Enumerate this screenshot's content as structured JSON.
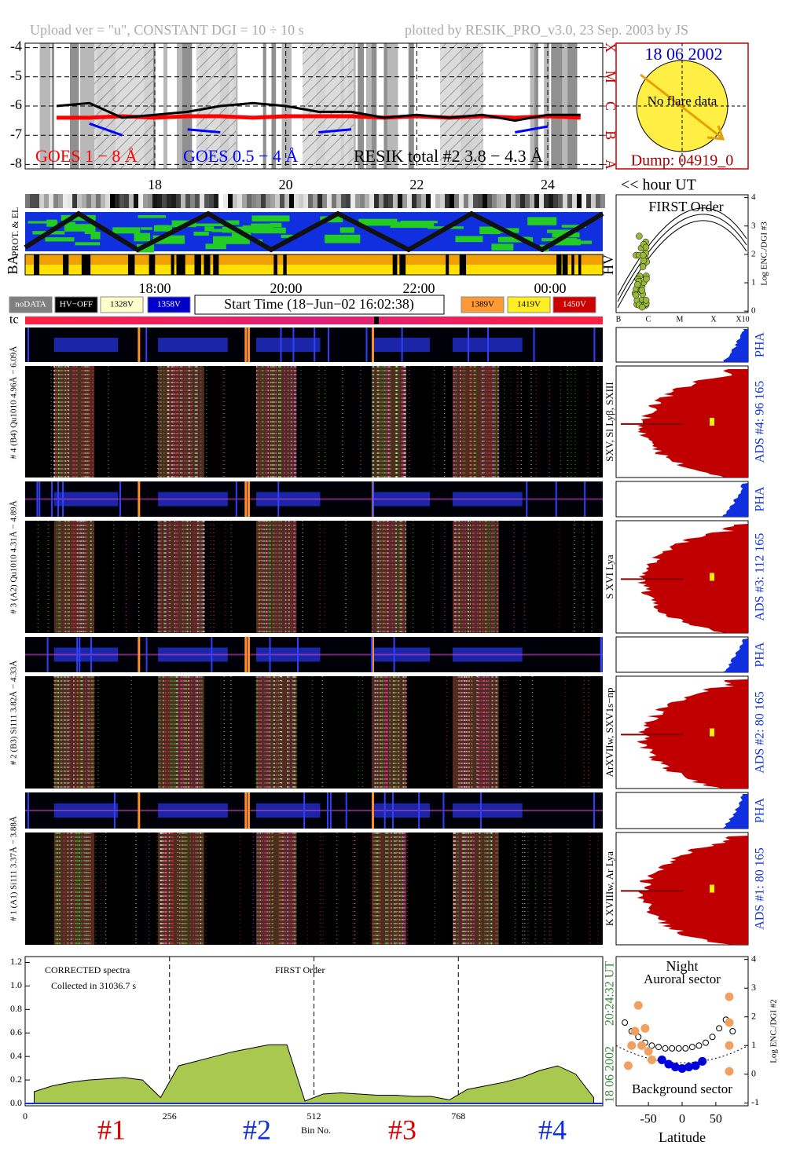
{
  "header": {
    "upload": "Upload ver = \"u\", CONSTANT  DGI =  10 ÷  10 s",
    "plotted": "plotted by RESIK_PRO_v3.0, 23 Sep. 2003 by JS"
  },
  "date_panel": {
    "date": "18 06 2002",
    "note": "No flare data",
    "dump": "Dump: 04919_0"
  },
  "timeline": {
    "time_labels": [
      "18:00",
      "20:00",
      "22:00",
      "00:00"
    ],
    "strip_labels": [
      "PROT. & EL",
      "BA",
      "HV"
    ],
    "legend": [
      {
        "label": "noDATA",
        "color": "#808080"
      },
      {
        "label": "HV−OFF",
        "color": "#000000"
      },
      {
        "label": "1328V",
        "color": "#ffffcc"
      },
      {
        "label": "1358V",
        "color": "#0000cc"
      },
      {
        "label": "1389V",
        "color": "#ff9933"
      },
      {
        "label": "1419V",
        "color": "#ffee22"
      },
      {
        "label": "1450V",
        "color": "#cc0000"
      }
    ],
    "start_time": "Start Time (18−Jun−02 16:02:38)",
    "tc": "tc"
  },
  "detectors": [
    {
      "label": "# 4 (B4) Qu1010  4.96Å − 6.09Å",
      "pha": "PHA",
      "ads": "ADS #4:   96 165",
      "lines": "SXV, Sl Lyβ, SXIII"
    },
    {
      "label": "# 3 (A2) Qu1010  4.31Å − 4.89Å",
      "pha": "PHA",
      "ads": "ADS #3:   112 165",
      "lines": "S XVI Lya"
    },
    {
      "label": "# 2 (B3) Si111  3.82Å − 4.33Å",
      "pha": "PHA",
      "ads": "ADS #2:   80 165",
      "lines": "ArXVIIw, SXV1s−np"
    },
    {
      "label": "# 1 (A1) Si111  3.37Å − 3.88Å",
      "pha": "PHA",
      "ads": "ADS #1:   80 165",
      "lines": "K XVIIIw, Ar Lya"
    }
  ],
  "chart_data": [
    {
      "type": "line",
      "x": [
        16.5,
        17,
        17.5,
        18,
        18.5,
        19,
        19.5,
        20,
        20.5,
        21,
        21.5,
        22,
        22.5,
        23,
        23.5,
        24,
        24.5
      ],
      "series": [
        {
          "name": "GOES 1 − 8 Å",
          "color": "#ff0000",
          "values": [
            -6.4,
            -6.4,
            -6.35,
            -6.4,
            -6.35,
            -6.35,
            -6.4,
            -6.35,
            -6.35,
            -6.35,
            -6.4,
            -6.35,
            -6.4,
            -6.35,
            -6.4,
            -6.35,
            -6.4
          ]
        },
        {
          "name": "GOES 0.5 − 4 Å",
          "color": "#0000ff",
          "values": [
            null,
            -6.6,
            -7.0,
            null,
            -6.8,
            -6.9,
            null,
            null,
            -6.9,
            -6.8,
            null,
            null,
            null,
            null,
            -6.9,
            -6.7,
            null
          ]
        },
        {
          "name": "RESIK total #2  3.8 − 4.3 Å",
          "color": "#000000",
          "values": [
            -6.0,
            -5.9,
            -6.4,
            -6.3,
            -6.2,
            -6.0,
            -5.9,
            -6.0,
            -6.2,
            -6.2,
            -6.4,
            -6.3,
            -6.4,
            -6.3,
            -6.5,
            -6.3,
            -6.3
          ]
        }
      ],
      "xlim": [
        16.02,
        24.84
      ],
      "xticks": [
        18,
        20,
        22,
        24
      ],
      "xlabel": "<< hour UT",
      "ylim": [
        -8.15,
        -3.85
      ],
      "yticks": [
        -4,
        -5,
        -6,
        -7,
        -8
      ],
      "y2lim": [
        -8.15,
        -3.85
      ],
      "y2ticks": [
        {
          "value": -4,
          "label": "X"
        },
        {
          "value": -5,
          "label": "M"
        },
        {
          "value": -6,
          "label": "C"
        },
        {
          "value": -7,
          "label": "B"
        },
        {
          "value": -8,
          "label": "A"
        }
      ],
      "grid": true
    },
    {
      "type": "line",
      "title": "FIRST Order",
      "ylabel": "Log ENC./DGI #3",
      "ylim": [
        -0.05,
        4.1
      ],
      "yticks": [
        0,
        1,
        2,
        3,
        4
      ],
      "x_labels": [
        "B",
        "C",
        "M",
        "X",
        "X10"
      ]
    },
    {
      "type": "area",
      "title": "CORRECTED spectra",
      "subtitle": "Collected in 31036.7 s",
      "annotation": "FIRST Order",
      "color": "#a8c850",
      "x": [
        16,
        48,
        80,
        112,
        144,
        176,
        208,
        240,
        272,
        304,
        336,
        368,
        400,
        432,
        464,
        496,
        528,
        560,
        592,
        624,
        656,
        688,
        720,
        752,
        784,
        816,
        848,
        880,
        912,
        944,
        976,
        1008
      ],
      "values": [
        0.1,
        0.15,
        0.18,
        0.2,
        0.21,
        0.22,
        0.2,
        0.05,
        0.32,
        0.36,
        0.4,
        0.44,
        0.47,
        0.5,
        0.5,
        0.02,
        0.08,
        0.09,
        0.08,
        0.07,
        0.07,
        0.06,
        0.06,
        0.03,
        0.12,
        0.15,
        0.18,
        0.22,
        0.28,
        0.32,
        0.25,
        0.05
      ],
      "xlim": [
        0,
        1024
      ],
      "xticks": [
        0,
        256,
        512,
        768
      ],
      "xlabel": "Bin No.",
      "ylim": [
        -0.02,
        1.25
      ],
      "yticks": [
        {
          "value": 0,
          "label": "0.0"
        },
        {
          "value": 0.2,
          "label": "0.2"
        },
        {
          "value": 0.4,
          "label": "0.4"
        },
        {
          "value": 0.6,
          "label": "0.6"
        },
        {
          "value": 0.8,
          "label": "0.8"
        },
        {
          "value": 1,
          "label": "1.0"
        },
        {
          "value": 1.2,
          "label": "1.2"
        }
      ],
      "segment_labels": [
        "#1",
        "#2",
        "#3",
        "#4"
      ],
      "segment_colors": [
        "#e00000",
        "#1030e0",
        "#e00000",
        "#1030e0"
      ],
      "time": "20:24:32 UT",
      "date": "18 06 2002"
    },
    {
      "type": "scatter",
      "title": "Night",
      "annotations": [
        "Auroral sector",
        "Background sector"
      ],
      "xlabel": "Latitude",
      "ylabel": "Log ENC./DGI #2",
      "xlim": [
        -98,
        98
      ],
      "xticks": [
        -50,
        0,
        50
      ],
      "ylim": [
        -1.1,
        4.1
      ],
      "yticks": [
        -1,
        0,
        1,
        2,
        3,
        4
      ],
      "series": [
        {
          "color": "#000000",
          "x": [
            -85,
            -75,
            -65,
            -55,
            -45,
            -35,
            -25,
            -15,
            -5,
            5,
            15,
            25,
            35,
            45,
            55,
            65,
            75
          ],
          "values": [
            1.8,
            1.5,
            1.3,
            1.1,
            1.0,
            0.95,
            0.9,
            0.9,
            0.9,
            0.9,
            0.95,
            1.0,
            1.1,
            1.3,
            1.6,
            1.9,
            1.5
          ]
        },
        {
          "color": "#0000dd",
          "x": [
            -30,
            -20,
            -10,
            0,
            10,
            20,
            30
          ],
          "values": [
            0.5,
            0.35,
            0.25,
            0.2,
            0.25,
            0.3,
            0.45
          ]
        },
        {
          "color": "#f0a060",
          "x": [
            -80,
            -75,
            -70,
            -65,
            -60,
            -55,
            -50,
            -45,
            70,
            70,
            70,
            70
          ],
          "values": [
            0.3,
            1.0,
            1.5,
            2.4,
            1.0,
            1.6,
            0.8,
            0.5,
            0.1,
            1.0,
            1.8,
            2.7
          ]
        }
      ]
    }
  ]
}
